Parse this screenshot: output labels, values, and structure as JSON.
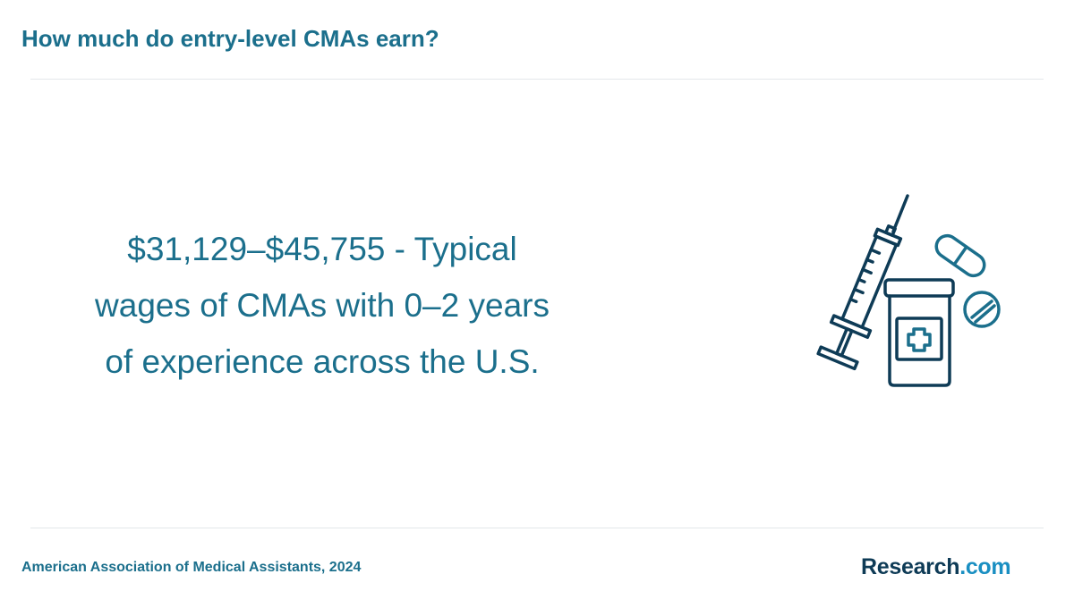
{
  "header": {
    "title": "How much do entry-level CMAs earn?"
  },
  "main": {
    "stat_line_1": "$31,129–$45,755 - Typical",
    "stat_line_2": "wages of CMAs with 0–2 years",
    "stat_line_3": "of experience across the U.S."
  },
  "illustration": {
    "icons": [
      "syringe-icon",
      "medicine-bottle-icon",
      "capsule-icon",
      "pill-tablet-icon"
    ],
    "colors": {
      "dark": "#0e3b56",
      "accent": "#1b6f8c"
    }
  },
  "footer": {
    "source": "American Association of Medical Assistants, 2024",
    "brand_name": "Research",
    "brand_tld": ".com"
  },
  "colors": {
    "title": "#1b6f8c",
    "brand_dark": "#0e3b56",
    "brand_accent": "#1a8fc2",
    "divider": "#e3e7ea"
  }
}
